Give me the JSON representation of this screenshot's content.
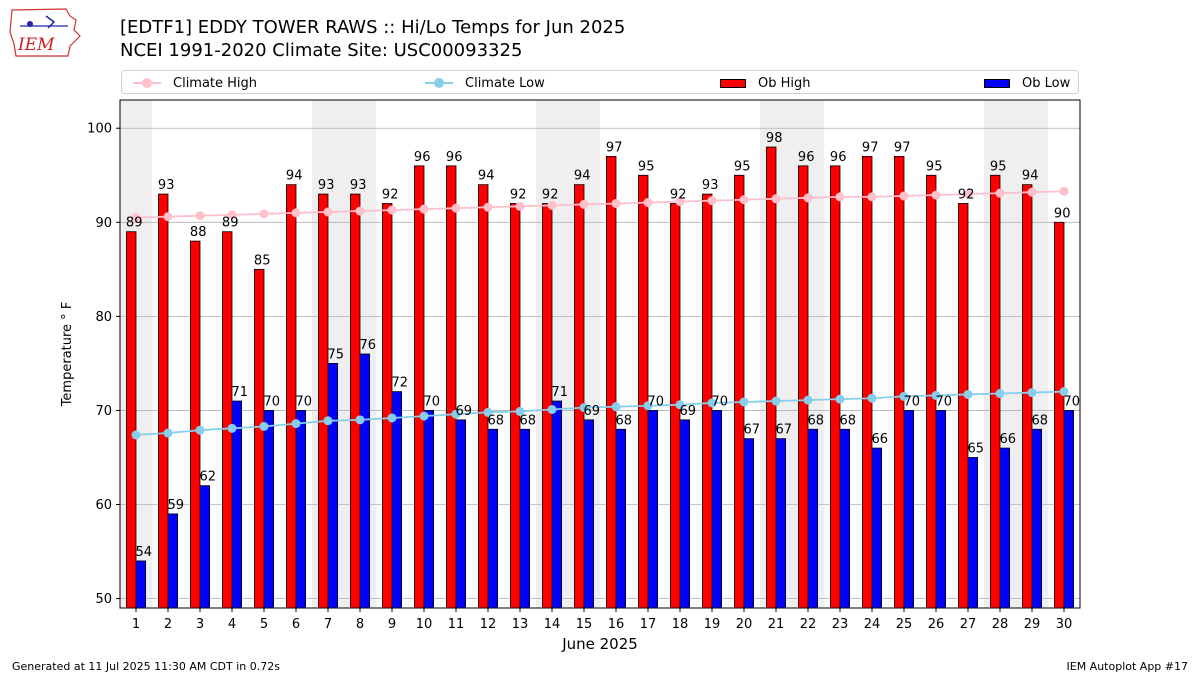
{
  "header": {
    "title_line1": "[EDTF1] EDDY TOWER RAWS :: Hi/Lo Temps for Jun 2025",
    "title_line2": "NCEI 1991-2020 Climate Site: USC00093325",
    "logo_text": "IEM"
  },
  "footer": {
    "generated": "Generated at 11 Jul 2025 11:30 AM CDT in 0.72s",
    "app": "IEM Autoplot App #17"
  },
  "colors": {
    "ob_high": "#ff0000",
    "ob_low": "#0000ff",
    "climate_high": "#ffc0cb",
    "climate_low": "#87ceeb",
    "weekend_band": "#efefef",
    "grid": "#b0b0b0"
  },
  "chart_data": {
    "type": "bar",
    "xlabel": "June 2025",
    "ylabel": "Temperature ° F",
    "ylim": [
      49,
      103
    ],
    "yticks": [
      50,
      60,
      70,
      80,
      90,
      100
    ],
    "grid": "horizontal",
    "legend_position": "top",
    "categories": [
      "1",
      "2",
      "3",
      "4",
      "5",
      "6",
      "7",
      "8",
      "9",
      "10",
      "11",
      "12",
      "13",
      "14",
      "15",
      "16",
      "17",
      "18",
      "19",
      "20",
      "21",
      "22",
      "23",
      "24",
      "25",
      "26",
      "27",
      "28",
      "29",
      "30"
    ],
    "weekend_bands": [
      [
        1,
        1
      ],
      [
        7,
        8
      ],
      [
        14,
        15
      ],
      [
        21,
        22
      ],
      [
        28,
        29
      ]
    ],
    "series": [
      {
        "name": "Ob High",
        "kind": "bar",
        "values": [
          89,
          93,
          88,
          89,
          85,
          94,
          93,
          93,
          92,
          96,
          96,
          94,
          92,
          92,
          94,
          97,
          95,
          92,
          93,
          95,
          98,
          96,
          96,
          97,
          97,
          95,
          92,
          95,
          94,
          90
        ]
      },
      {
        "name": "Ob Low",
        "kind": "bar",
        "values": [
          54,
          59,
          62,
          71,
          70,
          70,
          75,
          76,
          72,
          70,
          69,
          68,
          68,
          71,
          69,
          68,
          70,
          69,
          70,
          67,
          67,
          68,
          68,
          66,
          70,
          70,
          65,
          66,
          68,
          70
        ]
      },
      {
        "name": "Climate High",
        "kind": "line",
        "values": [
          90.5,
          90.6,
          90.7,
          90.8,
          90.9,
          91.0,
          91.1,
          91.2,
          91.3,
          91.4,
          91.5,
          91.6,
          91.7,
          91.8,
          91.9,
          92.0,
          92.1,
          92.2,
          92.3,
          92.4,
          92.5,
          92.6,
          92.7,
          92.7,
          92.8,
          92.9,
          93.0,
          93.1,
          93.2,
          93.3
        ]
      },
      {
        "name": "Climate Low",
        "kind": "line",
        "values": [
          67.4,
          67.6,
          67.9,
          68.1,
          68.3,
          68.6,
          68.9,
          69.0,
          69.2,
          69.4,
          69.6,
          69.8,
          69.9,
          70.1,
          70.3,
          70.4,
          70.5,
          70.6,
          70.8,
          70.9,
          71.0,
          71.1,
          71.2,
          71.3,
          71.5,
          71.6,
          71.7,
          71.8,
          71.9,
          72.0
        ]
      }
    ]
  }
}
